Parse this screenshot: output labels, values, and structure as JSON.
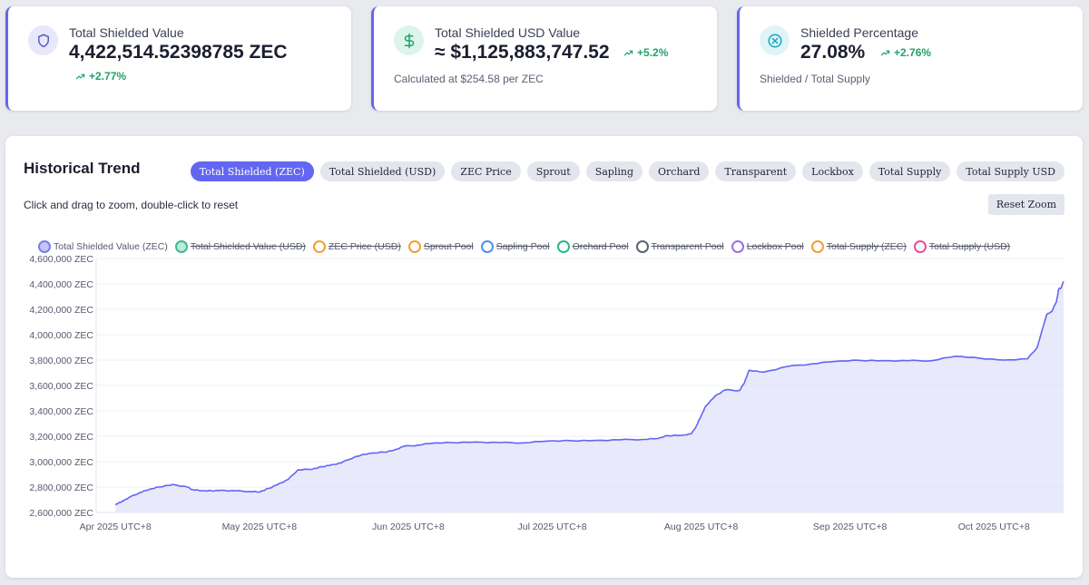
{
  "stats": [
    {
      "label": "Total Shielded Value",
      "value": "4,422,514.52398785 ZEC",
      "change": "+2.77%",
      "subtext": "",
      "icon": "shield-icon",
      "icon_bg": "#e8e8fb",
      "icon_color": "#5b5fc7"
    },
    {
      "label": "Total Shielded USD Value",
      "value": "≈ $1,125,883,747.52",
      "change": "+5.2%",
      "subtext": "Calculated at $254.58 per ZEC",
      "icon": "dollar-icon",
      "icon_bg": "#dcf5ea",
      "icon_color": "#22a06b"
    },
    {
      "label": "Shielded Percentage",
      "value": "27.08%",
      "change": "+2.76%",
      "subtext": "Shielded / Total Supply",
      "icon": "percent-circle-icon",
      "icon_bg": "#dff4f8",
      "icon_color": "#17a4c1"
    }
  ],
  "chart": {
    "title": "Historical Trend",
    "hint": "Click and drag to zoom, double-click to reset",
    "reset_label": "Reset Zoom",
    "tabs": [
      {
        "label": "Total Shielded (ZEC)",
        "active": true
      },
      {
        "label": "Total Shielded (USD)",
        "active": false
      },
      {
        "label": "ZEC Price",
        "active": false
      },
      {
        "label": "Sprout",
        "active": false
      },
      {
        "label": "Sapling",
        "active": false
      },
      {
        "label": "Orchard",
        "active": false
      },
      {
        "label": "Transparent",
        "active": false
      },
      {
        "label": "Lockbox",
        "active": false
      },
      {
        "label": "Total Supply",
        "active": false
      },
      {
        "label": "Total Supply USD",
        "active": false
      }
    ],
    "legend": [
      {
        "label": "Total Shielded Value (ZEC)",
        "color": "#7b7ee8",
        "fill": "#c4c6f5",
        "enabled": true
      },
      {
        "label": "Total Shielded Value (USD)",
        "color": "#3dba8c",
        "fill": "#bfe9d8",
        "enabled": false
      },
      {
        "label": "ZEC Price (USD)",
        "color": "#f0a030",
        "fill": "#ffffff",
        "enabled": false
      },
      {
        "label": "Sprout Pool",
        "color": "#f0a030",
        "fill": "#ffffff",
        "enabled": false
      },
      {
        "label": "Sapling Pool",
        "color": "#4c8ff0",
        "fill": "#ffffff",
        "enabled": false
      },
      {
        "label": "Orchard Pool",
        "color": "#2fb58a",
        "fill": "#ffffff",
        "enabled": false
      },
      {
        "label": "Transparent Pool",
        "color": "#5c6273",
        "fill": "#ffffff",
        "enabled": false
      },
      {
        "label": "Lockbox Pool",
        "color": "#9a6ee6",
        "fill": "#ffffff",
        "enabled": false
      },
      {
        "label": "Total Supply (ZEC)",
        "color": "#f0a030",
        "fill": "#ffffff",
        "enabled": false
      },
      {
        "label": "Total Supply (USD)",
        "color": "#e0509a",
        "fill": "#ffffff",
        "enabled": false
      }
    ]
  },
  "chart_data": {
    "type": "area",
    "series": [
      {
        "name": "Total Shielded Value (ZEC)",
        "x": [
          0,
          1,
          2,
          3,
          5,
          7,
          9,
          12,
          15,
          16,
          18,
          20,
          22,
          25,
          28,
          30,
          32,
          34,
          36,
          38,
          41,
          43,
          45,
          47,
          50,
          53,
          56,
          58,
          60,
          63,
          66,
          70,
          75,
          80,
          85,
          90,
          95,
          100,
          105,
          110,
          113,
          115,
          118,
          120,
          121,
          122,
          123,
          125,
          127,
          130,
          131,
          132,
          135,
          140,
          145,
          150,
          155,
          160,
          165,
          170,
          175,
          180,
          185,
          190,
          192,
          194,
          195,
          196,
          196.5,
          197,
          197.5
        ],
        "y": [
          2660000,
          2680000,
          2700000,
          2720000,
          2755000,
          2780000,
          2800000,
          2820000,
          2800000,
          2780000,
          2770000,
          2770000,
          2775000,
          2770000,
          2765000,
          2760000,
          2790000,
          2825000,
          2860000,
          2935000,
          2940000,
          2960000,
          2975000,
          2990000,
          3040000,
          3065000,
          3075000,
          3090000,
          3120000,
          3130000,
          3145000,
          3150000,
          3155000,
          3150000,
          3148000,
          3162000,
          3165000,
          3167000,
          3172000,
          3175000,
          3182000,
          3205000,
          3208000,
          3220000,
          3280000,
          3360000,
          3440000,
          3520000,
          3565000,
          3560000,
          3620000,
          3720000,
          3705000,
          3750000,
          3770000,
          3790000,
          3798000,
          3795000,
          3795000,
          3795000,
          3830000,
          3815000,
          3800000,
          3810000,
          3900000,
          4160000,
          4180000,
          4260000,
          4360000,
          4370000,
          4420000
        ]
      }
    ],
    "xlabels": [
      "Apr 2025 UTC+8",
      "May 2025 UTC+8",
      "Jun 2025 UTC+8",
      "Jul 2025 UTC+8",
      "Aug 2025 UTC+8",
      "Sep 2025 UTC+8",
      "Oct 2025 UTC+8"
    ],
    "xlabel_days": [
      0,
      30,
      61,
      91,
      122,
      153,
      183
    ],
    "ytick_labels": [
      "2,600,000 ZEC",
      "2,800,000 ZEC",
      "3,000,000 ZEC",
      "3,200,000 ZEC",
      "3,400,000 ZEC",
      "3,600,000 ZEC",
      "3,800,000 ZEC",
      "4,000,000 ZEC",
      "4,200,000 ZEC",
      "4,400,000 ZEC",
      "4,600,000 ZEC"
    ],
    "ytick_values": [
      2600000,
      2800000,
      3000000,
      3200000,
      3400000,
      3600000,
      3800000,
      4000000,
      4200000,
      4400000,
      4600000
    ],
    "ylim": [
      2600000,
      4600000
    ],
    "xlim_days": [
      -4,
      197.5
    ],
    "line_color": "#6366f1",
    "fill_color": "#e2e2fb",
    "grid": true
  }
}
